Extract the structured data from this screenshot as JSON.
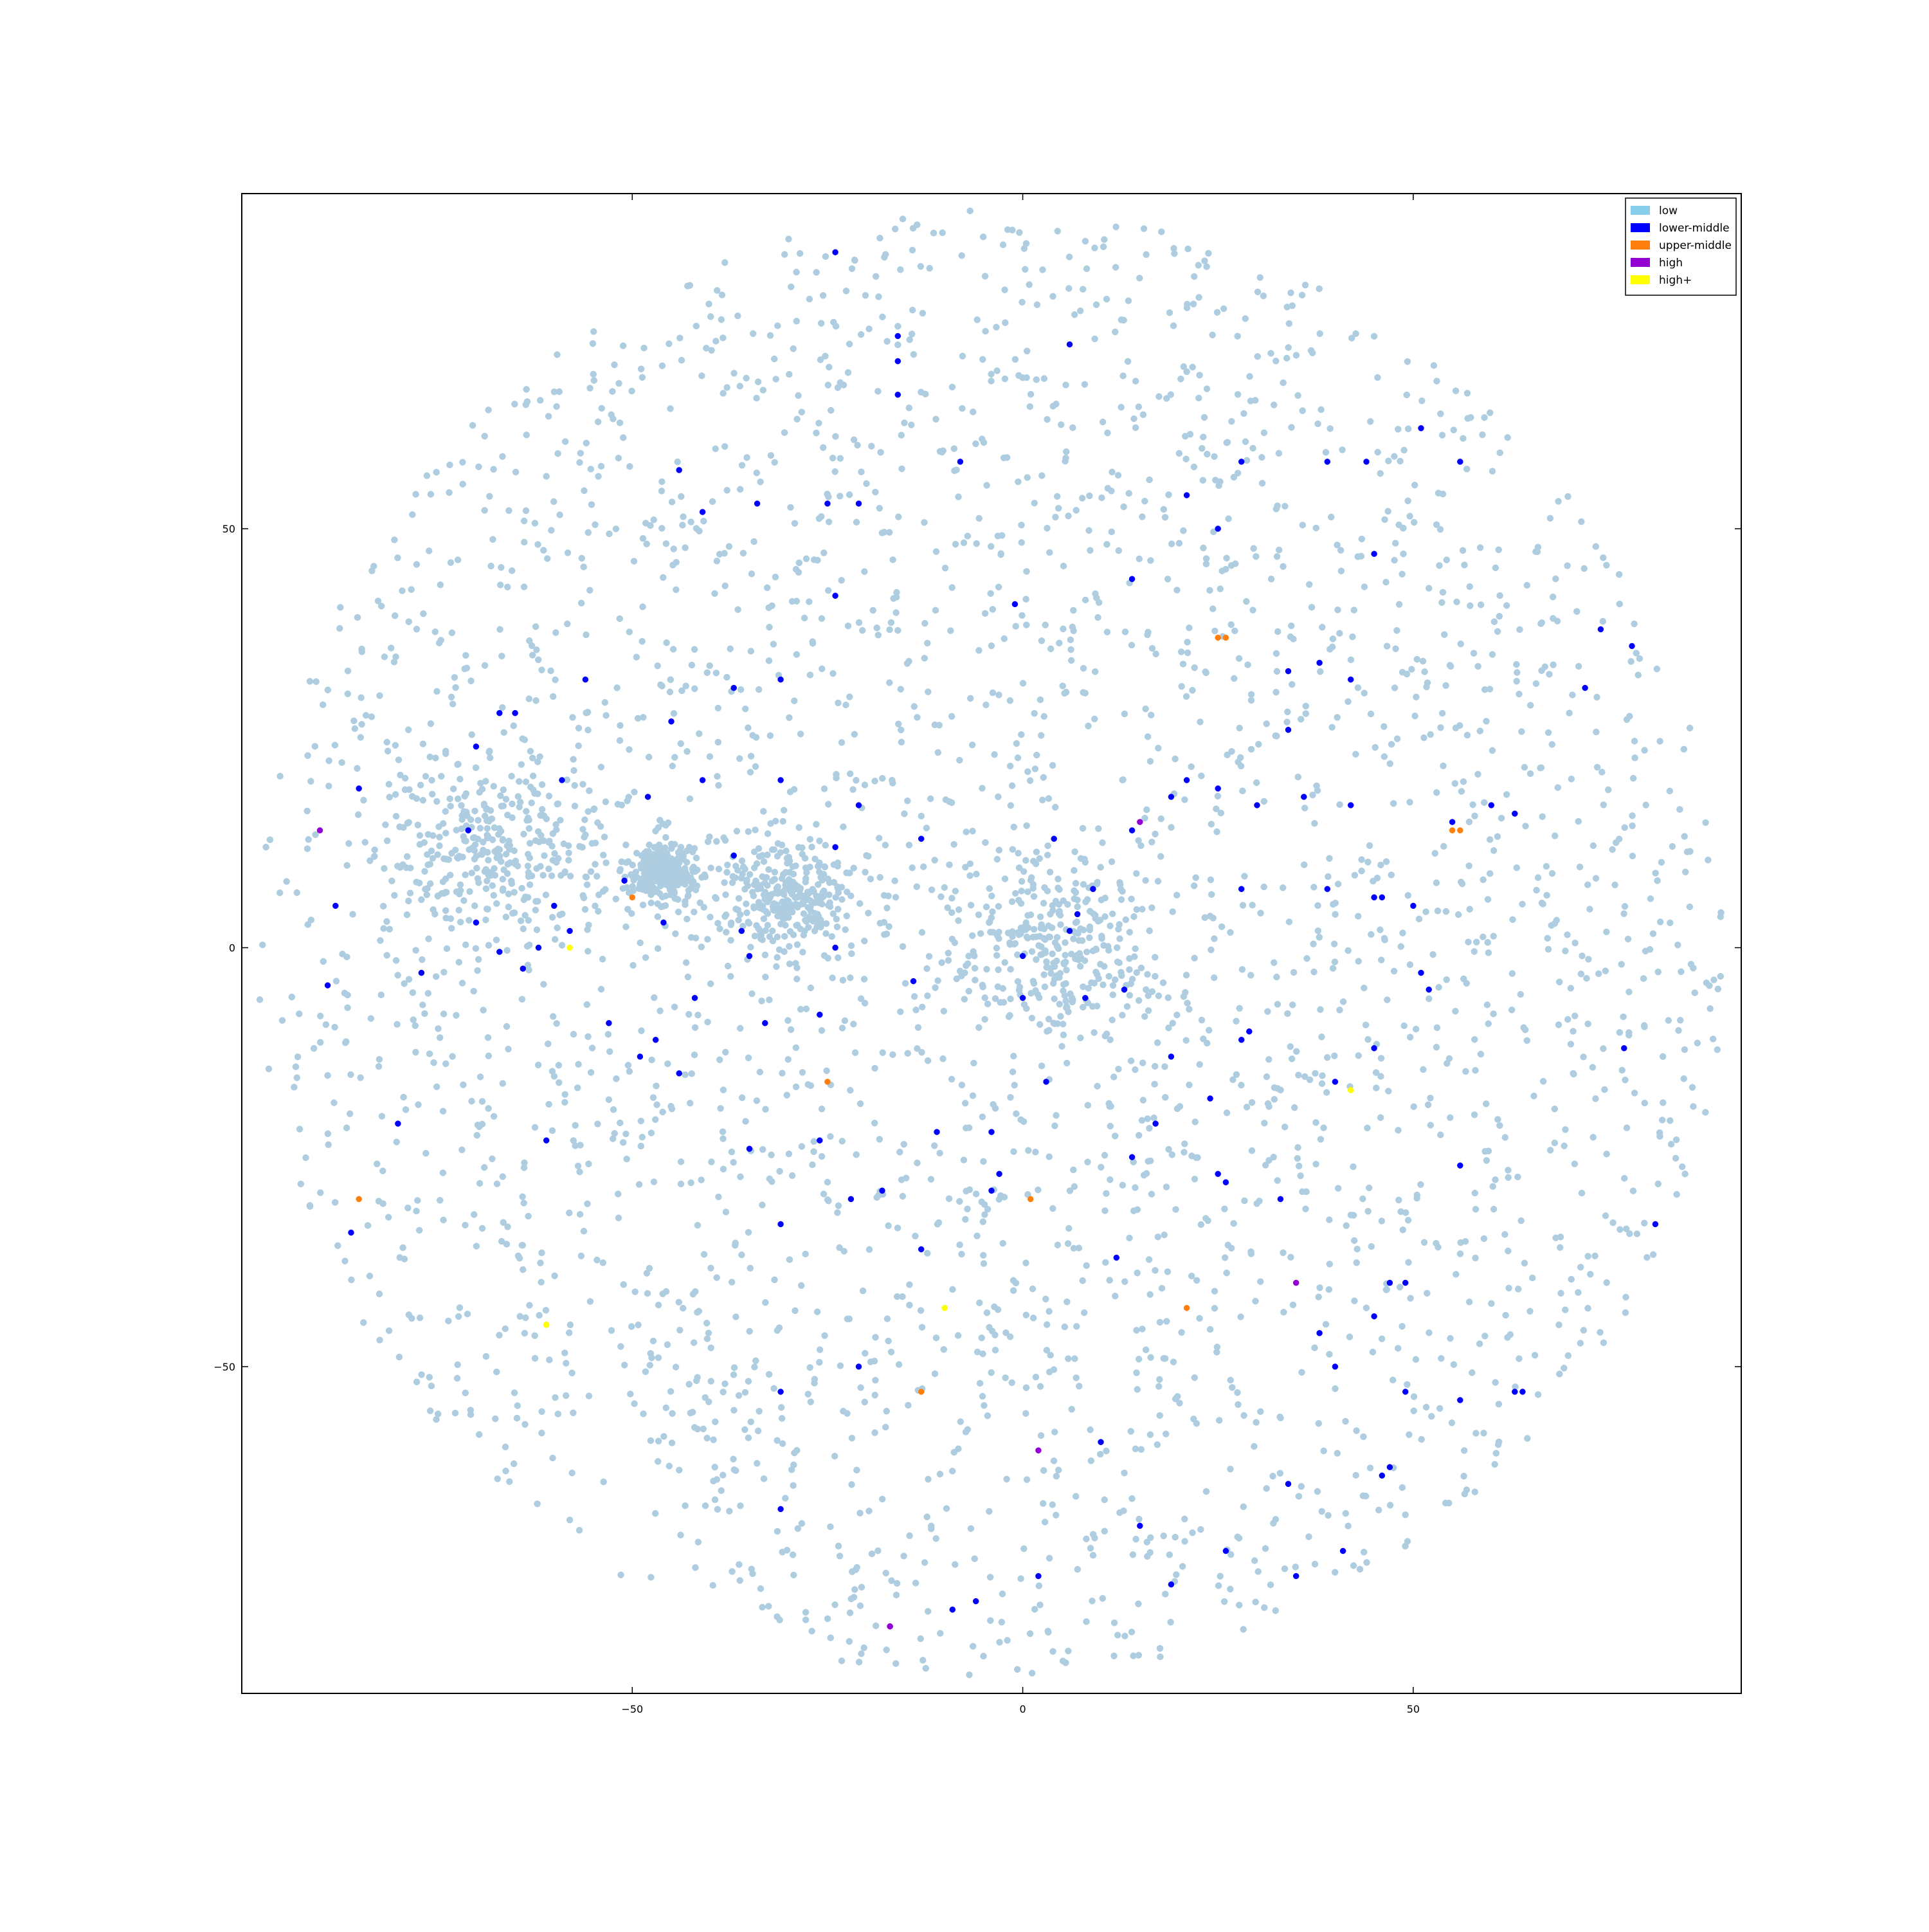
{
  "chart_data": {
    "type": "scatter",
    "title": "",
    "xlabel": "",
    "ylabel": "",
    "xlim": [
      -100,
      92
    ],
    "ylim": [
      -89,
      90
    ],
    "x_ticks": [
      -50,
      0,
      50
    ],
    "y_ticks": [
      50,
      0,
      -50
    ],
    "x_tick_labels": [
      "−50",
      "0",
      "50"
    ],
    "y_tick_labels": [
      "50",
      "0",
      "−50"
    ],
    "grid": false,
    "legend_position": "top-right",
    "legend": [
      {
        "label": "low",
        "color": "#87ceeb"
      },
      {
        "label": "lower-middle",
        "color": "#0000ff"
      },
      {
        "label": "upper-middle",
        "color": "#ff7f0e"
      },
      {
        "label": "high",
        "color": "#9400d3"
      },
      {
        "label": "high+",
        "color": "#ffff00"
      }
    ],
    "series": [
      {
        "name": "low",
        "color": "#aecde0",
        "approx_count": 4200,
        "x_range": [
          -98,
          90
        ],
        "y_range": [
          -87,
          88
        ],
        "dense_clusters": [
          {
            "x": -68,
            "y": 12,
            "sd": 7
          },
          {
            "x": -30,
            "y": 6,
            "sd": 4
          },
          {
            "x": 4,
            "y": 0,
            "sd": 7
          },
          {
            "x": -46,
            "y": 9,
            "sd": 2
          }
        ]
      },
      {
        "name": "lower-middle",
        "color": "#0000ff",
        "points": [
          [
            -16,
            73
          ],
          [
            -16,
            70
          ],
          [
            -16,
            66
          ],
          [
            -24,
            83
          ],
          [
            -44,
            57
          ],
          [
            -41,
            52
          ],
          [
            -34,
            53
          ],
          [
            -25,
            53
          ],
          [
            -21,
            53
          ],
          [
            -24,
            42
          ],
          [
            -31,
            32
          ],
          [
            -37,
            31
          ],
          [
            -45,
            27
          ],
          [
            -56,
            32
          ],
          [
            -67,
            28
          ],
          [
            -65,
            28
          ],
          [
            -70,
            24
          ],
          [
            -85,
            19
          ],
          [
            -71,
            14
          ],
          [
            -59,
            20
          ],
          [
            -48,
            18
          ],
          [
            -41,
            20
          ],
          [
            -31,
            20
          ],
          [
            -21,
            17
          ],
          [
            -13,
            13
          ],
          [
            -24,
            12
          ],
          [
            -37,
            11
          ],
          [
            -51,
            8
          ],
          [
            -60,
            5
          ],
          [
            -88,
            5
          ],
          [
            -70,
            3
          ],
          [
            -58,
            2
          ],
          [
            -46,
            3
          ],
          [
            -36,
            2
          ],
          [
            -24,
            0
          ],
          [
            -62,
            0
          ],
          [
            -67,
            -0.5
          ],
          [
            -64,
            -2.5
          ],
          [
            -77,
            -3
          ],
          [
            -89,
            -4.5
          ],
          [
            -14,
            -4
          ],
          [
            -26,
            -8
          ],
          [
            -33,
            -9
          ],
          [
            -42,
            -6
          ],
          [
            -47,
            -11
          ],
          [
            -49,
            -13
          ],
          [
            -35,
            -1
          ],
          [
            -80,
            -21
          ],
          [
            -53,
            -9
          ],
          [
            -44,
            -15
          ],
          [
            -61,
            -23
          ],
          [
            -35,
            -24
          ],
          [
            -26,
            -23
          ],
          [
            -31,
            -33
          ],
          [
            -86,
            -34
          ],
          [
            -22,
            -30
          ],
          [
            -18,
            -29
          ],
          [
            -13,
            -36
          ],
          [
            -21,
            -50
          ],
          [
            -31,
            -53
          ],
          [
            -31,
            -67
          ],
          [
            -11,
            -22
          ],
          [
            -4,
            -22
          ],
          [
            -3,
            -27
          ],
          [
            -4,
            -29
          ],
          [
            -9,
            -79
          ],
          [
            -6,
            -78
          ],
          [
            -17,
            -81
          ],
          [
            2,
            -75
          ],
          [
            10,
            -59
          ],
          [
            15,
            -69
          ],
          [
            19,
            -76
          ],
          [
            26,
            -72
          ],
          [
            35,
            -75
          ],
          [
            41,
            -72
          ],
          [
            40,
            -50
          ],
          [
            34,
            -64
          ],
          [
            46,
            -63
          ],
          [
            47,
            -62
          ],
          [
            49,
            -53
          ],
          [
            56,
            -54
          ],
          [
            63,
            -53
          ],
          [
            64,
            -53
          ],
          [
            45,
            -44
          ],
          [
            47,
            -40
          ],
          [
            38,
            -46
          ],
          [
            33,
            -30
          ],
          [
            26,
            -28
          ],
          [
            17,
            -21
          ],
          [
            12,
            -37
          ],
          [
            14,
            -25
          ],
          [
            24,
            -18
          ],
          [
            19,
            -13
          ],
          [
            3,
            -16
          ],
          [
            8,
            -6
          ],
          [
            13,
            -5
          ],
          [
            0,
            -1
          ],
          [
            0,
            -6
          ],
          [
            6,
            2
          ],
          [
            9,
            7
          ],
          [
            4,
            13
          ],
          [
            7,
            4
          ],
          [
            14,
            14
          ],
          [
            19,
            18
          ],
          [
            25,
            19
          ],
          [
            21,
            20
          ],
          [
            34,
            26
          ],
          [
            34,
            33
          ],
          [
            38,
            34
          ],
          [
            42,
            32
          ],
          [
            36,
            18
          ],
          [
            42,
            17
          ],
          [
            30,
            17
          ],
          [
            28,
            7
          ],
          [
            39,
            7
          ],
          [
            45,
            6
          ],
          [
            46,
            6
          ],
          [
            50,
            5
          ],
          [
            51,
            -3
          ],
          [
            52,
            -5
          ],
          [
            56,
            -26
          ],
          [
            49,
            -40
          ],
          [
            55,
            15
          ],
          [
            72,
            31
          ],
          [
            78,
            36
          ],
          [
            74,
            38
          ],
          [
            77,
            -12
          ],
          [
            81,
            -33
          ],
          [
            51,
            62
          ],
          [
            56,
            58
          ],
          [
            44,
            58
          ],
          [
            45,
            47
          ],
          [
            39,
            58
          ],
          [
            28,
            58
          ],
          [
            25,
            50
          ],
          [
            21,
            54
          ],
          [
            14,
            44
          ],
          [
            -8,
            58
          ],
          [
            -1,
            41
          ],
          [
            6,
            72
          ],
          [
            40,
            -16
          ],
          [
            45,
            -12
          ],
          [
            60,
            17
          ],
          [
            63,
            16
          ],
          [
            29,
            -10
          ],
          [
            25,
            -27
          ],
          [
            28,
            -11
          ]
        ]
      },
      {
        "name": "upper-middle",
        "color": "#ff7f0e",
        "points": [
          [
            -50,
            6
          ],
          [
            -25,
            -16
          ],
          [
            -85,
            -30
          ],
          [
            1,
            -30
          ],
          [
            -13,
            -53
          ],
          [
            21,
            -43
          ],
          [
            26,
            37
          ],
          [
            25,
            37
          ],
          [
            56,
            14
          ],
          [
            55,
            14
          ],
          [
            -61,
            -45
          ]
        ]
      },
      {
        "name": "high",
        "color": "#9400d3",
        "points": [
          [
            -90,
            14
          ],
          [
            15,
            15
          ],
          [
            2,
            -60
          ],
          [
            -17,
            -81
          ],
          [
            35,
            -40
          ]
        ]
      },
      {
        "name": "high+",
        "color": "#ffff00",
        "points": [
          [
            -58,
            0
          ],
          [
            -10,
            -43
          ],
          [
            42,
            -17
          ],
          [
            -61,
            -45
          ]
        ]
      }
    ]
  }
}
